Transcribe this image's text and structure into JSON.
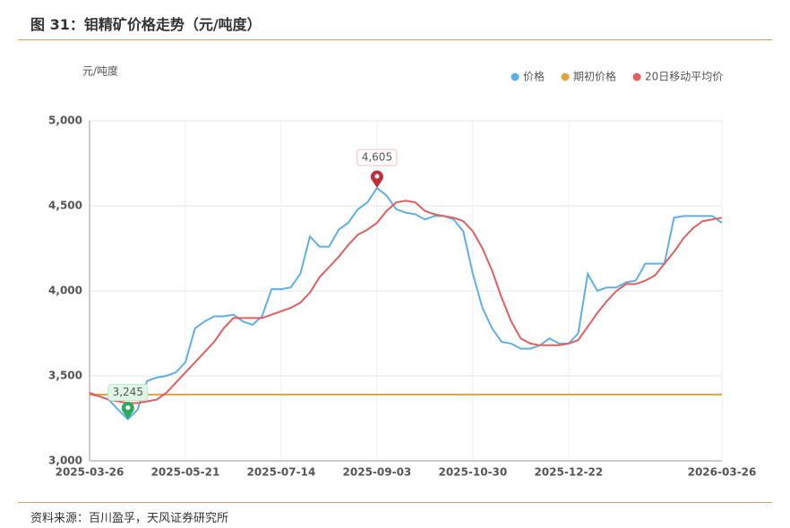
{
  "header": {
    "title": "图 31：钼精矿价格走势（元/吨度）"
  },
  "footer": {
    "source": "资料来源：百川盈孚，天风证券研究所"
  },
  "chart_data": {
    "type": "line",
    "y_label": "元/吨度",
    "categories": [
      "2025-03-26",
      null,
      null,
      null,
      null,
      null,
      null,
      null,
      null,
      null,
      "2025-05-21",
      null,
      null,
      null,
      null,
      null,
      null,
      null,
      null,
      null,
      "2025-07-14",
      null,
      null,
      null,
      null,
      null,
      null,
      null,
      null,
      null,
      "2025-09-03",
      null,
      null,
      null,
      null,
      null,
      null,
      null,
      null,
      null,
      "2025-10-30",
      null,
      null,
      null,
      null,
      null,
      null,
      null,
      null,
      null,
      "2025-12-22",
      null,
      null,
      null,
      null,
      null,
      null,
      null,
      null,
      null,
      null,
      null,
      null,
      null,
      null,
      null,
      "2026-03-26"
    ],
    "ylim": [
      3000,
      5000
    ],
    "yticks": [
      {
        "value": 3000,
        "label": "3,000"
      },
      {
        "value": 3500,
        "label": "3,500"
      },
      {
        "value": 4000,
        "label": "4,000"
      },
      {
        "value": 4500,
        "label": "4,500"
      },
      {
        "value": 5000,
        "label": "5,000"
      }
    ],
    "grid": true,
    "legend": "top-right",
    "series": [
      {
        "name": "价格",
        "color": "#5eb0e5",
        "values": [
          3390,
          3380,
          3360,
          3300,
          3245,
          3300,
          3470,
          3490,
          3500,
          3520,
          3580,
          3780,
          3820,
          3850,
          3850,
          3860,
          3820,
          3800,
          3850,
          4010,
          4010,
          4020,
          4100,
          4320,
          4260,
          4260,
          4360,
          4400,
          4480,
          4520,
          4605,
          4560,
          4480,
          4460,
          4450,
          4420,
          4440,
          4440,
          4420,
          4350,
          4100,
          3900,
          3780,
          3700,
          3690,
          3660,
          3660,
          3680,
          3720,
          3690,
          3690,
          3750,
          4100,
          4000,
          4020,
          4020,
          4050,
          4060,
          4160,
          4160,
          4160,
          4430,
          4440,
          4440,
          4440,
          4440,
          4400
        ],
        "value_labels": [
          null,
          null,
          null,
          null,
          "3,245",
          null,
          null,
          null,
          null,
          null,
          null,
          null,
          null,
          null,
          null,
          null,
          null,
          null,
          null,
          null,
          null,
          null,
          null,
          null,
          null,
          null,
          null,
          null,
          null,
          null,
          "4,605",
          null,
          null,
          null,
          null,
          null,
          null,
          null,
          null,
          null,
          null,
          null,
          null,
          null,
          null,
          null,
          null,
          null,
          null,
          null,
          null,
          null,
          null,
          null,
          null,
          null,
          null,
          null,
          null,
          null,
          null,
          null,
          null,
          null,
          null,
          null,
          null
        ]
      },
      {
        "name": "期初价格",
        "color": "#e0a33a",
        "values": [
          3390,
          3390,
          3390,
          3390,
          3390,
          3390,
          3390,
          3390,
          3390,
          3390,
          3390,
          3390,
          3390,
          3390,
          3390,
          3390,
          3390,
          3390,
          3390,
          3390,
          3390,
          3390,
          3390,
          3390,
          3390,
          3390,
          3390,
          3390,
          3390,
          3390,
          3390,
          3390,
          3390,
          3390,
          3390,
          3390,
          3390,
          3390,
          3390,
          3390,
          3390,
          3390,
          3390,
          3390,
          3390,
          3390,
          3390,
          3390,
          3390,
          3390,
          3390,
          3390,
          3390,
          3390,
          3390,
          3390,
          3390,
          3390,
          3390,
          3390,
          3390,
          3390,
          3390,
          3390,
          3390,
          3390,
          3390
        ]
      },
      {
        "name": "20日移动平均价",
        "color": "#e06060",
        "values": [
          3400,
          3380,
          3360,
          3350,
          3340,
          3340,
          3350,
          3360,
          3400,
          3460,
          3520,
          3580,
          3640,
          3700,
          3780,
          3840,
          3840,
          3840,
          3840,
          3860,
          3880,
          3900,
          3930,
          3990,
          4080,
          4140,
          4200,
          4270,
          4330,
          4360,
          4400,
          4470,
          4520,
          4530,
          4520,
          4470,
          4450,
          4440,
          4430,
          4410,
          4350,
          4250,
          4120,
          3960,
          3820,
          3720,
          3690,
          3680,
          3680,
          3680,
          3690,
          3710,
          3790,
          3870,
          3940,
          4000,
          4040,
          4040,
          4060,
          4090,
          4160,
          4230,
          4310,
          4370,
          4410,
          4420,
          4430
        ]
      }
    ]
  }
}
